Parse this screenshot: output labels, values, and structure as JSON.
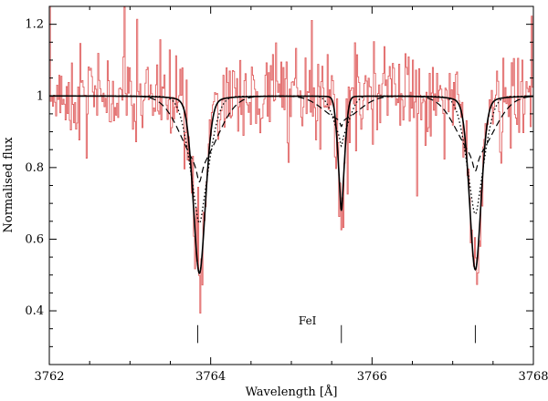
{
  "chart_data": {
    "type": "line",
    "title": "",
    "xlabel": "Wavelength [Å]",
    "ylabel": "Normalised flux",
    "xlim": [
      3762,
      3768
    ],
    "ylim": [
      0.25,
      1.25
    ],
    "x_ticks": [
      3762,
      3764,
      3766,
      3768
    ],
    "y_ticks": [
      0.4,
      0.6,
      0.8,
      1,
      1.2
    ],
    "x_tick_labels": [
      "3762",
      "3764",
      "3766",
      "3768"
    ],
    "y_tick_labels": [
      "0.4",
      "0.6",
      "0.8",
      "1",
      "1.2"
    ],
    "grid": false,
    "legend": "none",
    "annotations": [
      {
        "text": "FeI",
        "x": 3765.2,
        "y": 0.362
      }
    ],
    "line_markers": {
      "x": [
        3763.84,
        3765.62,
        3767.28
      ],
      "y_range": [
        0.31,
        0.36
      ]
    },
    "observed": {
      "color": "#e06060",
      "noise": 0.065,
      "seed": 7,
      "points": 460
    },
    "models": [
      {
        "style": "solid",
        "color": "#000000",
        "lines": [
          {
            "center": 3763.86,
            "depth": 0.495,
            "sigma": 0.08,
            "gamma": 0.075
          },
          {
            "center": 3765.62,
            "depth": 0.32,
            "sigma": 0.045,
            "gamma": 0.02
          },
          {
            "center": 3767.28,
            "depth": 0.485,
            "sigma": 0.075,
            "gamma": 0.075
          }
        ]
      },
      {
        "style": "dotted",
        "color": "#000000",
        "lines": [
          {
            "center": 3763.86,
            "depth": 0.355,
            "sigma": 0.13,
            "gamma": 0.06
          },
          {
            "center": 3765.62,
            "depth": 0.14,
            "sigma": 0.1,
            "gamma": 0.02
          },
          {
            "center": 3767.28,
            "depth": 0.33,
            "sigma": 0.12,
            "gamma": 0.06
          }
        ]
      },
      {
        "style": "dashed",
        "color": "#000000",
        "lines": [
          {
            "center": 3763.86,
            "depth": 0.24,
            "sigma": 0.23,
            "gamma": 0.04
          },
          {
            "center": 3765.62,
            "depth": 0.085,
            "sigma": 0.22,
            "gamma": 0.02
          },
          {
            "center": 3767.28,
            "depth": 0.21,
            "sigma": 0.23,
            "gamma": 0.04
          }
        ]
      }
    ]
  }
}
